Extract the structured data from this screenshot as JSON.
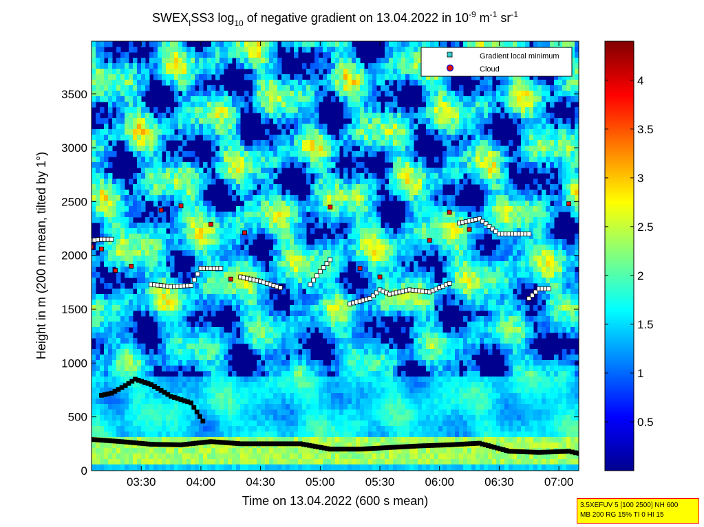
{
  "title": {
    "prefix": "SWEX",
    "sub_i": "I",
    "mid": "SS3 log",
    "sub_10": "10",
    "text": " of negative gradient on 13.04.2022 in 10",
    "sup1": "-9",
    "unit1": " m",
    "sup2": "-1",
    "unit2": " sr",
    "sup3": "-1"
  },
  "legend": {
    "items": [
      {
        "label": "Gradient local minimum",
        "color": "#33cccc",
        "marker": "square"
      },
      {
        "label": "Cloud",
        "color": "#dd1111",
        "marker": "circle"
      }
    ]
  },
  "info_box": {
    "line1": "3.5XEFUV 5 [100 2500] NH 600",
    "line2": "MB 200 RG 15% TI 0 HI 15"
  },
  "colors": {
    "heatmap_low": "#00008f",
    "heatmap_high": "#800000",
    "info_bg": "#ffff00",
    "info_border": "#ff0000"
  },
  "chart_data": {
    "type": "heatmap",
    "xlabel": "Time on 13.04.2022 (600 s mean)",
    "ylabel": "Height in m (200 m mean, tilted by 1°)",
    "xlim": [
      "03:05",
      "07:10"
    ],
    "ylim": [
      0,
      3990
    ],
    "x_ticks": [
      "03:30",
      "04:00",
      "04:30",
      "05:00",
      "05:30",
      "06:00",
      "06:30",
      "07:00"
    ],
    "y_ticks": [
      0,
      500,
      1000,
      1500,
      2000,
      2500,
      3000,
      3500
    ],
    "colorbar": {
      "range": [
        0,
        4.4
      ],
      "ticks": [
        0.5,
        1,
        1.5,
        2,
        2.5,
        3,
        3.5,
        4
      ],
      "tick_labels": [
        "0.5",
        "1",
        "1.5",
        "2",
        "2.5",
        "3",
        "3.5",
        "4"
      ]
    },
    "series": [
      {
        "name": "Gradient local minimum",
        "marker": "square",
        "lines": [
          {
            "x": [
              "03:05",
              "03:20",
              "03:35",
              "03:50",
              "04:05",
              "04:20",
              "04:35",
              "04:50",
              "05:05",
              "05:20",
              "05:35",
              "05:50",
              "06:05",
              "06:20",
              "06:35",
              "06:50",
              "07:05",
              "07:10"
            ],
            "y": [
              290,
              270,
              245,
              240,
              270,
              250,
              250,
              250,
              200,
              200,
              215,
              230,
              240,
              255,
              180,
              170,
              180,
              160
            ]
          },
          {
            "x": [
              "03:10",
              "03:15",
              "03:22",
              "03:27",
              "03:35",
              "03:45",
              "03:55",
              "04:01"
            ],
            "y": [
              700,
              720,
              790,
              850,
              800,
              690,
              630,
              460
            ]
          },
          {
            "x": [
              "03:05",
              "03:10",
              "03:15"
            ],
            "y": [
              2140,
              2150,
              2150
            ]
          },
          {
            "x": [
              "03:35",
              "03:45",
              "03:55",
              "04:00",
              "04:10"
            ],
            "y": [
              1730,
              1710,
              1720,
              1880,
              1880
            ]
          },
          {
            "x": [
              "04:20",
              "04:30",
              "04:40"
            ],
            "y": [
              1800,
              1760,
              1700
            ]
          },
          {
            "x": [
              "04:55",
              "05:00",
              "05:05"
            ],
            "y": [
              1730,
              1850,
              1960
            ]
          },
          {
            "x": [
              "05:15",
              "05:25",
              "05:30",
              "05:35",
              "05:45",
              "05:55",
              "06:05"
            ],
            "y": [
              1550,
              1600,
              1680,
              1640,
              1680,
              1660,
              1740
            ]
          },
          {
            "x": [
              "06:10",
              "06:20",
              "06:30",
              "06:40",
              "06:45"
            ],
            "y": [
              2300,
              2340,
              2200,
              2200,
              2200
            ]
          },
          {
            "x": [
              "06:45",
              "06:50",
              "06:55"
            ],
            "y": [
              1600,
              1690,
              1690
            ]
          }
        ]
      },
      {
        "name": "Cloud",
        "marker": "circle",
        "lines": [
          {
            "x": [
              "03:05",
              "03:10",
              "03:17",
              "03:25",
              "03:40",
              "03:50",
              "04:05",
              "04:15",
              "04:22",
              "05:05",
              "05:20",
              "05:30",
              "05:55",
              "06:05",
              "06:15",
              "07:05"
            ],
            "y": [
              2080,
              2060,
              1860,
              1900,
              2420,
              2460,
              2290,
              1780,
              2210,
              2450,
              1880,
              1800,
              2140,
              2400,
              2240,
              2480
            ]
          }
        ]
      }
    ]
  }
}
